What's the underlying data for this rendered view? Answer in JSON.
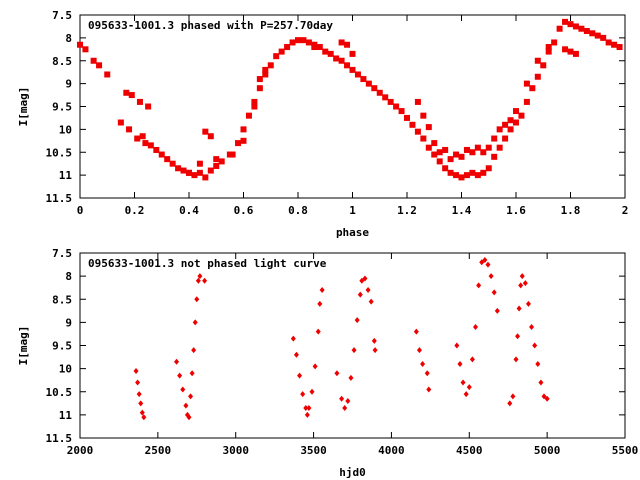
{
  "chart_data": [
    {
      "type": "scatter",
      "title": "095633-1001.3 phased with P=257.70day",
      "xlabel": "phase",
      "ylabel": "I[mag]",
      "xlim": [
        0,
        2
      ],
      "ylim": [
        11.5,
        7.5
      ],
      "y_inverted": true,
      "xticks": [
        "0",
        "0.2",
        "0.4",
        "0.6",
        "0.8",
        "1",
        "1.2",
        "1.4",
        "1.6",
        "1.8",
        "2"
      ],
      "yticks": [
        "7.5",
        "8",
        "8.5",
        "9",
        "9.5",
        "10",
        "10.5",
        "11",
        "11.5"
      ],
      "marker_color": "#ee0000",
      "marker": "square",
      "points": [
        [
          0.0,
          8.15
        ],
        [
          0.02,
          8.25
        ],
        [
          0.05,
          8.5
        ],
        [
          0.07,
          8.6
        ],
        [
          0.1,
          8.8
        ],
        [
          0.15,
          9.85
        ],
        [
          0.17,
          9.2
        ],
        [
          0.18,
          10.0
        ],
        [
          0.19,
          9.25
        ],
        [
          0.21,
          10.2
        ],
        [
          0.22,
          9.4
        ],
        [
          0.23,
          10.15
        ],
        [
          0.24,
          10.3
        ],
        [
          0.25,
          9.5
        ],
        [
          0.26,
          10.35
        ],
        [
          0.28,
          10.45
        ],
        [
          0.3,
          10.55
        ],
        [
          0.32,
          10.65
        ],
        [
          0.34,
          10.75
        ],
        [
          0.36,
          10.85
        ],
        [
          0.38,
          10.9
        ],
        [
          0.4,
          10.95
        ],
        [
          0.42,
          11.0
        ],
        [
          0.44,
          10.95
        ],
        [
          0.46,
          11.05
        ],
        [
          0.48,
          10.9
        ],
        [
          0.5,
          10.8
        ],
        [
          0.52,
          10.7
        ],
        [
          0.55,
          10.55
        ],
        [
          0.58,
          10.3
        ],
        [
          0.6,
          10.0
        ],
        [
          0.62,
          9.7
        ],
        [
          0.64,
          9.4
        ],
        [
          0.66,
          9.1
        ],
        [
          0.68,
          8.8
        ],
        [
          0.7,
          8.6
        ],
        [
          0.72,
          8.4
        ],
        [
          0.74,
          8.3
        ],
        [
          0.76,
          8.2
        ],
        [
          0.78,
          8.1
        ],
        [
          0.8,
          8.05
        ],
        [
          0.82,
          8.05
        ],
        [
          0.84,
          8.1
        ],
        [
          0.86,
          8.15
        ],
        [
          0.88,
          8.2
        ],
        [
          0.9,
          8.3
        ],
        [
          0.92,
          8.35
        ],
        [
          0.94,
          8.45
        ],
        [
          0.96,
          8.5
        ],
        [
          0.98,
          8.6
        ],
        [
          1.0,
          8.7
        ],
        [
          1.02,
          8.8
        ],
        [
          1.04,
          8.9
        ],
        [
          1.06,
          9.0
        ],
        [
          1.08,
          9.1
        ],
        [
          1.1,
          9.2
        ],
        [
          1.12,
          9.3
        ],
        [
          1.14,
          9.4
        ],
        [
          1.16,
          9.5
        ],
        [
          1.18,
          9.6
        ],
        [
          1.2,
          9.75
        ],
        [
          1.22,
          9.9
        ],
        [
          1.24,
          10.05
        ],
        [
          1.26,
          10.2
        ],
        [
          1.28,
          10.4
        ],
        [
          1.3,
          10.55
        ],
        [
          1.32,
          10.7
        ],
        [
          1.34,
          10.85
        ],
        [
          1.36,
          10.95
        ],
        [
          1.38,
          11.0
        ],
        [
          1.4,
          11.05
        ],
        [
          1.42,
          11.0
        ],
        [
          1.44,
          10.95
        ],
        [
          1.46,
          11.0
        ],
        [
          1.48,
          10.95
        ],
        [
          1.5,
          10.85
        ],
        [
          1.52,
          10.6
        ],
        [
          1.54,
          10.4
        ],
        [
          1.56,
          10.2
        ],
        [
          1.58,
          10.0
        ],
        [
          1.6,
          9.85
        ],
        [
          1.62,
          9.7
        ],
        [
          1.64,
          9.4
        ],
        [
          1.66,
          9.1
        ],
        [
          1.68,
          8.85
        ],
        [
          1.7,
          8.6
        ],
        [
          1.72,
          8.3
        ],
        [
          1.74,
          8.1
        ],
        [
          1.76,
          7.8
        ],
        [
          1.78,
          7.65
        ],
        [
          1.8,
          7.7
        ],
        [
          1.82,
          7.75
        ],
        [
          1.84,
          7.8
        ],
        [
          1.86,
          7.85
        ],
        [
          1.88,
          7.9
        ],
        [
          1.9,
          7.95
        ],
        [
          1.92,
          8.0
        ],
        [
          1.94,
          8.1
        ],
        [
          1.96,
          8.15
        ],
        [
          1.98,
          8.2
        ],
        [
          0.4,
          10.95
        ],
        [
          0.44,
          10.75
        ],
        [
          0.46,
          10.05
        ],
        [
          0.48,
          10.15
        ],
        [
          0.5,
          10.65
        ],
        [
          0.56,
          10.55
        ],
        [
          0.6,
          10.25
        ],
        [
          0.64,
          9.5
        ],
        [
          0.66,
          8.9
        ],
        [
          0.68,
          8.7
        ],
        [
          0.86,
          8.2
        ],
        [
          0.96,
          8.1
        ],
        [
          0.98,
          8.15
        ],
        [
          1.0,
          8.35
        ],
        [
          1.24,
          9.4
        ],
        [
          1.26,
          9.7
        ],
        [
          1.28,
          9.95
        ],
        [
          1.3,
          10.3
        ],
        [
          1.32,
          10.5
        ],
        [
          1.34,
          10.45
        ],
        [
          1.36,
          10.65
        ],
        [
          1.38,
          10.55
        ],
        [
          1.4,
          10.6
        ],
        [
          1.42,
          10.45
        ],
        [
          1.44,
          10.5
        ],
        [
          1.46,
          10.4
        ],
        [
          1.48,
          10.5
        ],
        [
          1.5,
          10.4
        ],
        [
          1.52,
          10.2
        ],
        [
          1.54,
          10.0
        ],
        [
          1.56,
          9.9
        ],
        [
          1.58,
          9.8
        ],
        [
          1.6,
          9.6
        ],
        [
          1.64,
          9.0
        ],
        [
          1.68,
          8.5
        ],
        [
          1.72,
          8.2
        ],
        [
          1.8,
          8.3
        ],
        [
          1.82,
          8.35
        ],
        [
          1.78,
          8.25
        ]
      ]
    },
    {
      "type": "scatter",
      "title": "095633-1001.3 not phased light curve",
      "xlabel": "hjd0",
      "ylabel": "I[mag]",
      "xlim": [
        2000,
        5500
      ],
      "ylim": [
        11.5,
        7.5
      ],
      "y_inverted": true,
      "xticks": [
        "2000",
        "2500",
        "3000",
        "3500",
        "4000",
        "4500",
        "5000",
        "5500"
      ],
      "yticks": [
        "7.5",
        "8",
        "8.5",
        "9",
        "9.5",
        "10",
        "10.5",
        "11",
        "11.5"
      ],
      "marker_color": "#ee0000",
      "marker": "diamond",
      "points": [
        [
          2360,
          10.05
        ],
        [
          2370,
          10.3
        ],
        [
          2380,
          10.55
        ],
        [
          2390,
          10.75
        ],
        [
          2400,
          10.95
        ],
        [
          2410,
          11.05
        ],
        [
          2620,
          9.85
        ],
        [
          2640,
          10.15
        ],
        [
          2660,
          10.45
        ],
        [
          2680,
          10.8
        ],
        [
          2690,
          11.0
        ],
        [
          2700,
          11.05
        ],
        [
          2710,
          10.6
        ],
        [
          2720,
          10.1
        ],
        [
          2730,
          9.6
        ],
        [
          2740,
          9.0
        ],
        [
          2750,
          8.5
        ],
        [
          2760,
          8.1
        ],
        [
          2770,
          8.0
        ],
        [
          2800,
          8.1
        ],
        [
          3370,
          9.35
        ],
        [
          3390,
          9.7
        ],
        [
          3410,
          10.15
        ],
        [
          3430,
          10.55
        ],
        [
          3450,
          10.85
        ],
        [
          3460,
          11.0
        ],
        [
          3470,
          10.85
        ],
        [
          3490,
          10.5
        ],
        [
          3510,
          9.95
        ],
        [
          3530,
          9.2
        ],
        [
          3540,
          8.6
        ],
        [
          3555,
          8.3
        ],
        [
          3650,
          10.1
        ],
        [
          3680,
          10.65
        ],
        [
          3700,
          10.85
        ],
        [
          3720,
          10.7
        ],
        [
          3740,
          10.2
        ],
        [
          3760,
          9.6
        ],
        [
          3780,
          8.95
        ],
        [
          3800,
          8.4
        ],
        [
          3810,
          8.1
        ],
        [
          3830,
          8.05
        ],
        [
          3850,
          8.3
        ],
        [
          3870,
          8.55
        ],
        [
          3890,
          9.4
        ],
        [
          3895,
          9.6
        ],
        [
          4160,
          9.2
        ],
        [
          4180,
          9.6
        ],
        [
          4200,
          9.9
        ],
        [
          4230,
          10.1
        ],
        [
          4240,
          10.45
        ],
        [
          4420,
          9.5
        ],
        [
          4440,
          9.9
        ],
        [
          4460,
          10.3
        ],
        [
          4480,
          10.55
        ],
        [
          4500,
          10.4
        ],
        [
          4520,
          9.8
        ],
        [
          4540,
          9.1
        ],
        [
          4560,
          8.2
        ],
        [
          4580,
          7.7
        ],
        [
          4600,
          7.65
        ],
        [
          4620,
          7.75
        ],
        [
          4640,
          8.0
        ],
        [
          4660,
          8.35
        ],
        [
          4680,
          8.75
        ],
        [
          4760,
          10.75
        ],
        [
          4780,
          10.6
        ],
        [
          4800,
          9.8
        ],
        [
          4810,
          9.3
        ],
        [
          4820,
          8.7
        ],
        [
          4830,
          8.2
        ],
        [
          4840,
          8.0
        ],
        [
          4860,
          8.15
        ],
        [
          4880,
          8.6
        ],
        [
          4900,
          9.1
        ],
        [
          4920,
          9.5
        ],
        [
          4940,
          9.9
        ],
        [
          4960,
          10.3
        ],
        [
          4980,
          10.6
        ],
        [
          5000,
          10.65
        ]
      ]
    }
  ]
}
